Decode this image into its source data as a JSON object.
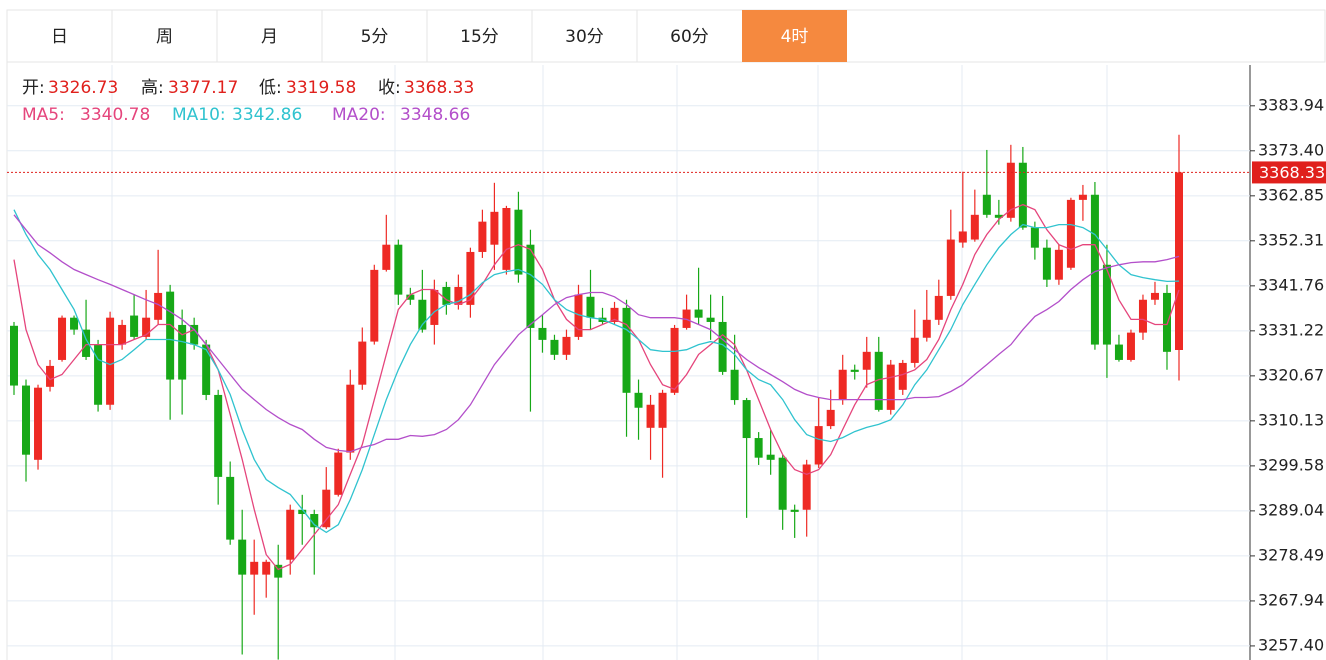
{
  "tabs": [
    "日",
    "周",
    "月",
    "5分",
    "15分",
    "30分",
    "60分",
    "4时"
  ],
  "active_tab": 7,
  "chart_data": {
    "type": "candlestick",
    "info_labels": [
      "开:",
      "高:",
      "低:",
      "收:"
    ],
    "up_color": "#ee2a24",
    "down_color": "#17a817",
    "label_color": "#e0201c",
    "ylim": [
      3254.1,
      3393.5
    ],
    "yticks": [
      3383.94,
      {
        "value": 3373.4,
        "label": "3373.40"
      },
      3362.85,
      3352.31,
      3341.76,
      3331.22,
      3320.67,
      3310.13,
      3299.58,
      3289.04,
      3278.49,
      3267.94,
      {
        "value": 3257.4,
        "label": "3257.40"
      }
    ],
    "grid": true,
    "ohlc": [
      [
        3332.4,
        3333.3,
        3316.2,
        3318.4
      ],
      [
        3318.4,
        3319.8,
        3295.9,
        3302.2
      ],
      [
        3301.0,
        3318.6,
        3298.7,
        3317.9
      ],
      [
        3318.1,
        3324.4,
        3317.0,
        3323.0
      ],
      [
        3324.4,
        3334.8,
        3324.0,
        3334.3
      ],
      [
        3334.3,
        3334.8,
        3330.3,
        3331.5
      ],
      [
        3331.5,
        3338.5,
        3324.4,
        3325.1
      ],
      [
        3328.0,
        3329.1,
        3312.3,
        3313.9
      ],
      [
        3313.9,
        3335.7,
        3312.7,
        3334.3
      ],
      [
        3328.0,
        3333.8,
        3326.8,
        3332.6
      ],
      [
        3334.8,
        3339.7,
        3329.1,
        3329.8
      ],
      [
        3329.8,
        3340.8,
        3329.1,
        3334.3
      ],
      [
        3333.8,
        3350.2,
        3332.6,
        3340.1
      ],
      [
        3340.4,
        3342.0,
        3310.4,
        3319.8
      ],
      [
        3332.6,
        3336.2,
        3311.6,
        3319.8
      ],
      [
        3332.6,
        3334.3,
        3326.8,
        3328.0
      ],
      [
        3328.0,
        3329.1,
        3315.0,
        3316.2
      ],
      [
        3316.2,
        3317.4,
        3290.5,
        3297.0
      ],
      [
        3297.0,
        3300.6,
        3281.1,
        3282.3
      ],
      [
        3282.3,
        3289.3,
        3255.4,
        3274.1
      ],
      [
        3274.1,
        3282.3,
        3264.7,
        3277.1
      ],
      [
        3274.1,
        3277.6,
        3268.7,
        3277.1
      ],
      [
        3276.4,
        3281.1,
        3254.2,
        3273.4
      ],
      [
        3277.6,
        3290.5,
        3274.1,
        3289.3
      ],
      [
        3289.3,
        3292.8,
        3281.1,
        3288.3
      ],
      [
        3288.3,
        3289.3,
        3274.1,
        3285.2
      ],
      [
        3285.2,
        3299.3,
        3284.8,
        3294.0
      ],
      [
        3292.8,
        3303.6,
        3292.4,
        3302.7
      ],
      [
        3302.7,
        3322.1,
        3301.0,
        3318.6
      ],
      [
        3318.6,
        3332.0,
        3317.4,
        3328.7
      ],
      [
        3328.7,
        3346.7,
        3328.0,
        3345.5
      ],
      [
        3345.5,
        3358.4,
        3345.1,
        3351.4
      ],
      [
        3351.4,
        3352.6,
        3337.3,
        3339.7
      ],
      [
        3339.7,
        3341.3,
        3337.3,
        3338.5
      ],
      [
        3338.5,
        3345.5,
        3330.8,
        3331.5
      ],
      [
        3332.6,
        3343.2,
        3328.0,
        3340.8
      ],
      [
        3341.5,
        3342.7,
        3335.0,
        3337.3
      ],
      [
        3337.3,
        3344.4,
        3336.2,
        3341.5
      ],
      [
        3337.3,
        3350.7,
        3334.3,
        3349.7
      ],
      [
        3349.7,
        3359.6,
        3348.3,
        3356.8
      ],
      [
        3351.4,
        3365.9,
        3345.5,
        3359.1
      ],
      [
        3345.5,
        3360.5,
        3344.4,
        3360.0
      ],
      [
        3359.6,
        3363.8,
        3342.5,
        3344.4
      ],
      [
        3351.4,
        3354.9,
        3312.3,
        3331.9
      ],
      [
        3331.9,
        3335.0,
        3326.1,
        3329.1
      ],
      [
        3329.1,
        3330.3,
        3324.4,
        3325.6
      ],
      [
        3325.6,
        3331.5,
        3324.4,
        3329.8
      ],
      [
        3329.8,
        3342.0,
        3329.1,
        3339.7
      ],
      [
        3339.2,
        3345.5,
        3331.5,
        3334.3
      ],
      [
        3334.3,
        3336.6,
        3332.6,
        3333.3
      ],
      [
        3333.3,
        3338.0,
        3332.6,
        3336.6
      ],
      [
        3336.6,
        3338.5,
        3306.4,
        3316.7
      ],
      [
        3316.7,
        3319.8,
        3305.7,
        3313.2
      ],
      [
        3308.5,
        3316.2,
        3301.0,
        3313.9
      ],
      [
        3308.5,
        3317.4,
        3296.8,
        3316.7
      ],
      [
        3316.7,
        3332.6,
        3316.2,
        3331.9
      ],
      [
        3331.9,
        3339.7,
        3331.5,
        3336.2
      ],
      [
        3336.2,
        3346.0,
        3332.6,
        3334.3
      ],
      [
        3334.3,
        3339.7,
        3329.1,
        3333.3
      ],
      [
        3333.3,
        3339.4,
        3320.9,
        3321.6
      ],
      [
        3322.1,
        3330.3,
        3313.9,
        3315.0
      ],
      [
        3315.0,
        3315.5,
        3287.4,
        3306.1
      ],
      [
        3306.1,
        3307.5,
        3299.8,
        3301.5
      ],
      [
        3302.2,
        3308.0,
        3297.5,
        3301.0
      ],
      [
        3301.5,
        3302.2,
        3284.6,
        3289.3
      ],
      [
        3289.3,
        3290.5,
        3282.7,
        3288.8
      ],
      [
        3289.3,
        3301.0,
        3283.0,
        3299.9
      ],
      [
        3299.9,
        3315.5,
        3299.1,
        3308.9
      ],
      [
        3308.9,
        3317.4,
        3308.2,
        3312.7
      ],
      [
        3315.0,
        3325.6,
        3313.9,
        3322.1
      ],
      [
        3322.1,
        3323.3,
        3319.8,
        3321.6
      ],
      [
        3322.1,
        3329.8,
        3317.9,
        3326.3
      ],
      [
        3326.3,
        3329.8,
        3312.3,
        3312.7
      ],
      [
        3312.7,
        3324.4,
        3311.6,
        3323.3
      ],
      [
        3317.4,
        3324.4,
        3316.2,
        3323.7
      ],
      [
        3323.7,
        3336.2,
        3322.6,
        3329.6
      ],
      [
        3329.6,
        3340.8,
        3328.7,
        3333.8
      ],
      [
        3333.8,
        3343.2,
        3332.6,
        3339.4
      ],
      [
        3339.4,
        3359.6,
        3338.5,
        3352.6
      ],
      [
        3351.9,
        3368.5,
        3350.7,
        3354.5
      ],
      [
        3352.6,
        3364.3,
        3352.1,
        3358.4
      ],
      [
        3363.1,
        3373.6,
        3357.7,
        3358.4
      ],
      [
        3358.4,
        3361.9,
        3356.1,
        3357.7
      ],
      [
        3357.7,
        3374.8,
        3356.8,
        3370.6
      ],
      [
        3370.6,
        3374.3,
        3354.9,
        3355.4
      ],
      [
        3355.4,
        3356.8,
        3347.9,
        3350.7
      ],
      [
        3350.7,
        3352.6,
        3341.5,
        3343.2
      ],
      [
        3343.2,
        3351.4,
        3342.0,
        3350.2
      ],
      [
        3346.0,
        3362.4,
        3345.5,
        3361.9
      ],
      [
        3361.9,
        3365.4,
        3357.0,
        3363.1
      ],
      [
        3363.1,
        3366.1,
        3326.8,
        3328.0
      ],
      [
        3346.7,
        3351.4,
        3320.2,
        3328.0
      ],
      [
        3328.0,
        3330.3,
        3324.0,
        3324.4
      ],
      [
        3324.4,
        3331.5,
        3324.0,
        3330.8
      ],
      [
        3330.8,
        3339.7,
        3329.1,
        3338.5
      ],
      [
        3338.5,
        3342.7,
        3337.3,
        3340.1
      ],
      [
        3340.1,
        3342.0,
        3322.1,
        3326.3
      ],
      [
        3326.73,
        3377.17,
        3319.58,
        3368.33
      ]
    ],
    "series": [
      {
        "name": "MA5:",
        "color": "#e5457c",
        "values": [
          3347.9,
          3331.5,
          3323.3,
          3319.8,
          3321.0,
          3324.5,
          3328.0,
          3328.0,
          3328.0,
          3328.0,
          3329.2,
          3330.3,
          3332.7,
          3332.7,
          3330.3,
          3331.5,
          3328.0,
          3322.1,
          3311.6,
          3301.1,
          3289.4,
          3278.8,
          3275.3,
          3276.5,
          3280.0,
          3283.5,
          3287.0,
          3290.5,
          3297.6,
          3304.6,
          3315.1,
          3325.7,
          3336.2,
          3339.7,
          3340.9,
          3340.9,
          3338.5,
          3337.4,
          3338.5,
          3342.1,
          3346.7,
          3350.3,
          3351.4,
          3350.3,
          3345.6,
          3338.5,
          3333.9,
          3331.5,
          3331.5,
          3332.7,
          3333.9,
          3332.7,
          3329.2,
          3323.3,
          3318.6,
          3317.5,
          3321.0,
          3325.7,
          3328.0,
          3330.3,
          3328.0,
          3322.1,
          3315.1,
          3308.1,
          3302.2,
          3298.7,
          3297.6,
          3298.7,
          3302.2,
          3308.1,
          3313.9,
          3318.6,
          3319.8,
          3320.3,
          3321.0,
          3322.1,
          3324.5,
          3329.2,
          3336.2,
          3342.1,
          3349.1,
          3353.8,
          3357.3,
          3359.6,
          3360.8,
          3359.6,
          3354.9,
          3351.4,
          3350.3,
          3351.4,
          3351.4,
          3345.6,
          3338.5,
          3333.9,
          3333.9,
          3332.7,
          3332.7,
          3340.78
        ]
      },
      {
        "name": "MA10:",
        "color": "#30c3cf",
        "values": [
          3359.6,
          3353.8,
          3349.1,
          3345.6,
          3340.9,
          3336.2,
          3329.2,
          3324.5,
          3323.3,
          3324.5,
          3326.8,
          3329.2,
          3329.2,
          3329.2,
          3328.7,
          3328.0,
          3326.8,
          3322.1,
          3316.3,
          3308.1,
          3301.1,
          3296.4,
          3294.5,
          3292.9,
          3289.4,
          3285.8,
          3284.0,
          3285.8,
          3291.7,
          3298.7,
          3306.9,
          3315.1,
          3322.1,
          3328.0,
          3332.7,
          3335.7,
          3337.4,
          3338.1,
          3339.7,
          3342.5,
          3344.4,
          3345.1,
          3345.6,
          3344.4,
          3342.1,
          3338.5,
          3336.2,
          3335.0,
          3334.3,
          3333.9,
          3332.7,
          3331.5,
          3329.2,
          3326.8,
          3326.4,
          3326.4,
          3326.8,
          3328.0,
          3328.7,
          3328.0,
          3325.7,
          3322.1,
          3319.8,
          3318.6,
          3315.1,
          3310.4,
          3306.9,
          3305.8,
          3305.3,
          3306.2,
          3307.6,
          3308.6,
          3309.3,
          3310.4,
          3313.9,
          3318.6,
          3322.1,
          3326.8,
          3331.5,
          3337.4,
          3342.1,
          3346.7,
          3350.7,
          3353.8,
          3356.1,
          3355.4,
          3355.4,
          3356.1,
          3356.1,
          3355.4,
          3353.8,
          3350.3,
          3346.7,
          3344.4,
          3343.7,
          3343.2,
          3342.8,
          3342.86
        ]
      },
      {
        "name": "MA20:",
        "color": "#b34fca",
        "values": [
          3358.4,
          3354.9,
          3351.4,
          3349.5,
          3347.4,
          3345.6,
          3344.4,
          3343.2,
          3342.1,
          3340.9,
          3339.7,
          3338.5,
          3337.4,
          3335.7,
          3333.9,
          3331.5,
          3328.0,
          3324.5,
          3321.0,
          3317.5,
          3315.1,
          3312.8,
          3310.9,
          3309.3,
          3308.1,
          3305.8,
          3303.9,
          3303.2,
          3302.9,
          3303.9,
          3304.6,
          3305.8,
          3305.8,
          3306.7,
          3306.5,
          3306.9,
          3308.1,
          3310.4,
          3313.9,
          3318.6,
          3323.3,
          3326.8,
          3330.3,
          3332.7,
          3335.0,
          3337.4,
          3339.0,
          3339.7,
          3340.2,
          3340.2,
          3339.2,
          3337.4,
          3335.0,
          3334.3,
          3334.3,
          3334.3,
          3333.9,
          3332.7,
          3331.5,
          3329.2,
          3326.8,
          3324.5,
          3322.6,
          3321.0,
          3319.3,
          3317.5,
          3316.3,
          3315.6,
          3315.1,
          3315.1,
          3315.1,
          3315.1,
          3315.1,
          3315.1,
          3315.1,
          3315.6,
          3315.6,
          3315.8,
          3317.0,
          3318.6,
          3321.0,
          3323.3,
          3325.7,
          3328.0,
          3331.5,
          3334.6,
          3336.2,
          3338.1,
          3340.9,
          3343.2,
          3345.1,
          3346.0,
          3346.7,
          3347.2,
          3347.4,
          3347.4,
          3347.9,
          3348.66
        ]
      }
    ]
  }
}
